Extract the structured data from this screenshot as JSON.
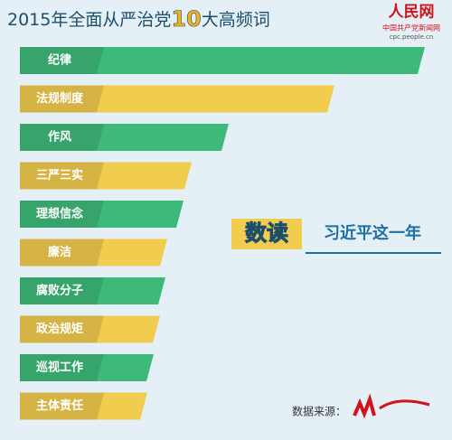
{
  "chart_data": {
    "type": "bar",
    "orientation": "horizontal",
    "title_parts": [
      "2015年全面从严治党",
      "10",
      "大高频词"
    ],
    "logo": {
      "name": "人民网",
      "subtitle": "中国共产党新闻网",
      "url": "cpc.people.cn"
    },
    "badge": [
      "数读",
      "习近平这一年"
    ],
    "source": "数据来源：",
    "categories": [
      "纪律",
      "法规制度",
      "作风",
      "三严三实",
      "理想信念",
      "廉洁",
      "腐败分子",
      "政治规矩",
      "巡视工作",
      "主体责任"
    ],
    "values": [
      448,
      348,
      231,
      190,
      181,
      163,
      161,
      155,
      148,
      141
    ],
    "colors": [
      "#3dba7a",
      "#f2cc4e"
    ]
  }
}
